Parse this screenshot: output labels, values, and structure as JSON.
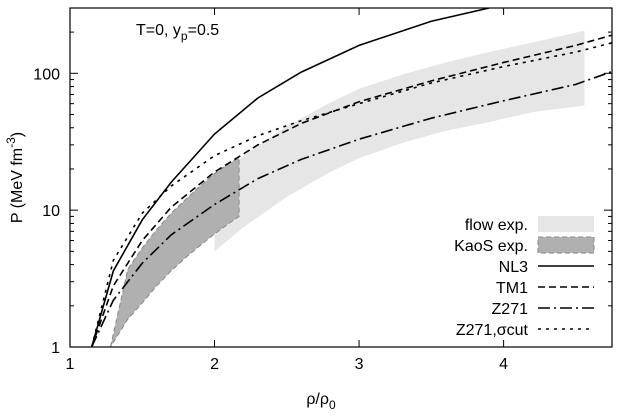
{
  "chart_data": {
    "type": "line",
    "title": "",
    "xlabel": "ρ/ρ",
    "xlabel_sub": "0",
    "ylabel": "P (MeV fm",
    "ylabel_sup": "-3",
    "ylabel_end": ")",
    "xlim": [
      1,
      4.75
    ],
    "ylim": [
      1,
      300
    ],
    "yscale": "log",
    "grid": false,
    "legend_position": "bottom-right",
    "annotation": {
      "text": "T=0, y",
      "sub": "p",
      "rest": "=0.5"
    },
    "x_ticks": [
      1,
      2,
      3,
      4
    ],
    "x_tick_labels": [
      "1",
      "2",
      "3",
      "4"
    ],
    "y_ticks": [
      1,
      10,
      100
    ],
    "y_tick_labels": [
      "1",
      "10",
      "100"
    ],
    "bands": [
      {
        "name": "flow exp.",
        "color": "#e6e6e6",
        "x": [
          2.0,
          2.2,
          2.5,
          2.8,
          3.0,
          3.3,
          3.6,
          3.9,
          4.2,
          4.56
        ],
        "lower": [
          5.0,
          7.5,
          12.5,
          19.0,
          24.0,
          31.0,
          38.0,
          44.0,
          52.0,
          58.0
        ],
        "upper": [
          15.5,
          25.0,
          41.0,
          61.0,
          77.0,
          98.0,
          120.0,
          143.0,
          168.0,
          205.0
        ]
      },
      {
        "name": "KaoS exp.",
        "color": "#b0b0b0",
        "edge_color": "#888888",
        "x": [
          1.28,
          1.4,
          1.5,
          1.6,
          1.7,
          1.8,
          1.9,
          2.0,
          2.1,
          2.17
        ],
        "lower": [
          1.0,
          1.6,
          2.1,
          2.8,
          3.6,
          4.5,
          5.5,
          6.7,
          8.0,
          9.0
        ],
        "upper": [
          1.0,
          3.7,
          5.3,
          7.2,
          9.5,
          12.0,
          15.0,
          18.5,
          22.0,
          24.0
        ]
      }
    ],
    "series": [
      {
        "name": "NL3",
        "dash": "",
        "x": [
          1.15,
          1.3,
          1.5,
          1.7,
          2.0,
          2.3,
          2.6,
          3.0,
          3.5,
          3.9
        ],
        "y": [
          1.0,
          3.6,
          8.5,
          16.0,
          36.0,
          66.0,
          102.0,
          160.0,
          240.0,
          300.0
        ]
      },
      {
        "name": "TM1",
        "dash": "7,4",
        "x": [
          1.15,
          1.3,
          1.5,
          1.7,
          2.0,
          2.3,
          2.6,
          3.0,
          3.5,
          4.0,
          4.5,
          4.75
        ],
        "y": [
          1.0,
          2.8,
          6.0,
          10.5,
          19.0,
          30.0,
          43.0,
          62.0,
          88.0,
          120.0,
          160.0,
          190.0
        ]
      },
      {
        "name": "Z271",
        "dash": "12,4,2,4",
        "x": [
          1.15,
          1.3,
          1.5,
          1.7,
          2.0,
          2.3,
          2.6,
          3.0,
          3.5,
          4.0,
          4.5,
          4.75
        ],
        "y": [
          1.0,
          2.2,
          4.1,
          6.6,
          11.0,
          17.0,
          23.5,
          33.0,
          47.0,
          63.0,
          83.0,
          103.0
        ]
      },
      {
        "name": "Z271,σcut",
        "dash": "3,5",
        "x": [
          1.15,
          1.3,
          1.5,
          1.7,
          2.0,
          2.3,
          2.6,
          3.0,
          3.5,
          4.0,
          4.5,
          4.75
        ],
        "y": [
          1.0,
          4.3,
          9.5,
          15.0,
          25.0,
          35.0,
          45.0,
          60.0,
          85.0,
          112.0,
          143.0,
          167.0
        ]
      }
    ]
  }
}
